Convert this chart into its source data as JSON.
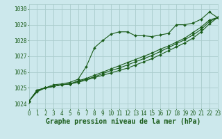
{
  "title": "Graphe pression niveau de la mer (hPa)",
  "bg_color": "#cce8ec",
  "grid_color": "#aacccc",
  "line_color": "#1a5c1a",
  "xlim": [
    0,
    23
  ],
  "ylim": [
    1023.7,
    1030.3
  ],
  "yticks": [
    1024,
    1025,
    1026,
    1027,
    1028,
    1029,
    1030
  ],
  "xticks": [
    0,
    1,
    2,
    3,
    4,
    5,
    6,
    7,
    8,
    9,
    10,
    11,
    12,
    13,
    14,
    15,
    16,
    17,
    18,
    19,
    20,
    21,
    22,
    23
  ],
  "line1_x": [
    0,
    1,
    2,
    3,
    4,
    5,
    6,
    7,
    8,
    9,
    10,
    11,
    12,
    13,
    14,
    15,
    16,
    17,
    18,
    19,
    20,
    21,
    22,
    23
  ],
  "line1_y": [
    1024.15,
    1024.75,
    1025.0,
    1025.2,
    1025.25,
    1025.35,
    1025.55,
    1026.35,
    1027.55,
    1028.0,
    1028.4,
    1028.55,
    1028.55,
    1028.3,
    1028.3,
    1028.25,
    1028.35,
    1028.45,
    1029.0,
    1029.0,
    1029.1,
    1029.35,
    1029.8,
    1029.45
  ],
  "line2_x": [
    0,
    1,
    2,
    3,
    4,
    5,
    6,
    7,
    8,
    9,
    10,
    11,
    12,
    13,
    14,
    15,
    16,
    17,
    18,
    19,
    20,
    21,
    22,
    23
  ],
  "line2_y": [
    1024.15,
    1024.85,
    1025.0,
    1025.1,
    1025.2,
    1025.25,
    1025.35,
    1025.5,
    1025.65,
    1025.8,
    1025.95,
    1026.1,
    1026.25,
    1026.45,
    1026.65,
    1026.85,
    1027.1,
    1027.35,
    1027.6,
    1027.85,
    1028.15,
    1028.55,
    1029.05,
    1029.45
  ],
  "line3_x": [
    0,
    1,
    2,
    3,
    4,
    5,
    6,
    7,
    8,
    9,
    10,
    11,
    12,
    13,
    14,
    15,
    16,
    17,
    18,
    19,
    20,
    21,
    22,
    23
  ],
  "line3_y": [
    1024.15,
    1024.85,
    1025.0,
    1025.1,
    1025.2,
    1025.25,
    1025.4,
    1025.55,
    1025.7,
    1025.9,
    1026.1,
    1026.25,
    1026.45,
    1026.65,
    1026.85,
    1027.05,
    1027.3,
    1027.55,
    1027.8,
    1028.05,
    1028.35,
    1028.7,
    1029.2,
    1029.45
  ],
  "line4_x": [
    0,
    1,
    2,
    3,
    4,
    5,
    6,
    7,
    8,
    9,
    10,
    11,
    12,
    13,
    14,
    15,
    16,
    17,
    18,
    19,
    20,
    21,
    22,
    23
  ],
  "line4_y": [
    1024.15,
    1024.85,
    1025.0,
    1025.1,
    1025.2,
    1025.25,
    1025.45,
    1025.6,
    1025.8,
    1026.0,
    1026.2,
    1026.4,
    1026.6,
    1026.8,
    1027.0,
    1027.2,
    1027.45,
    1027.65,
    1027.9,
    1028.15,
    1028.5,
    1028.85,
    1029.3,
    1029.45
  ],
  "marker": "D",
  "marker_size": 2.0,
  "linewidth": 0.8,
  "title_fontsize": 7,
  "tick_fontsize": 5.5
}
